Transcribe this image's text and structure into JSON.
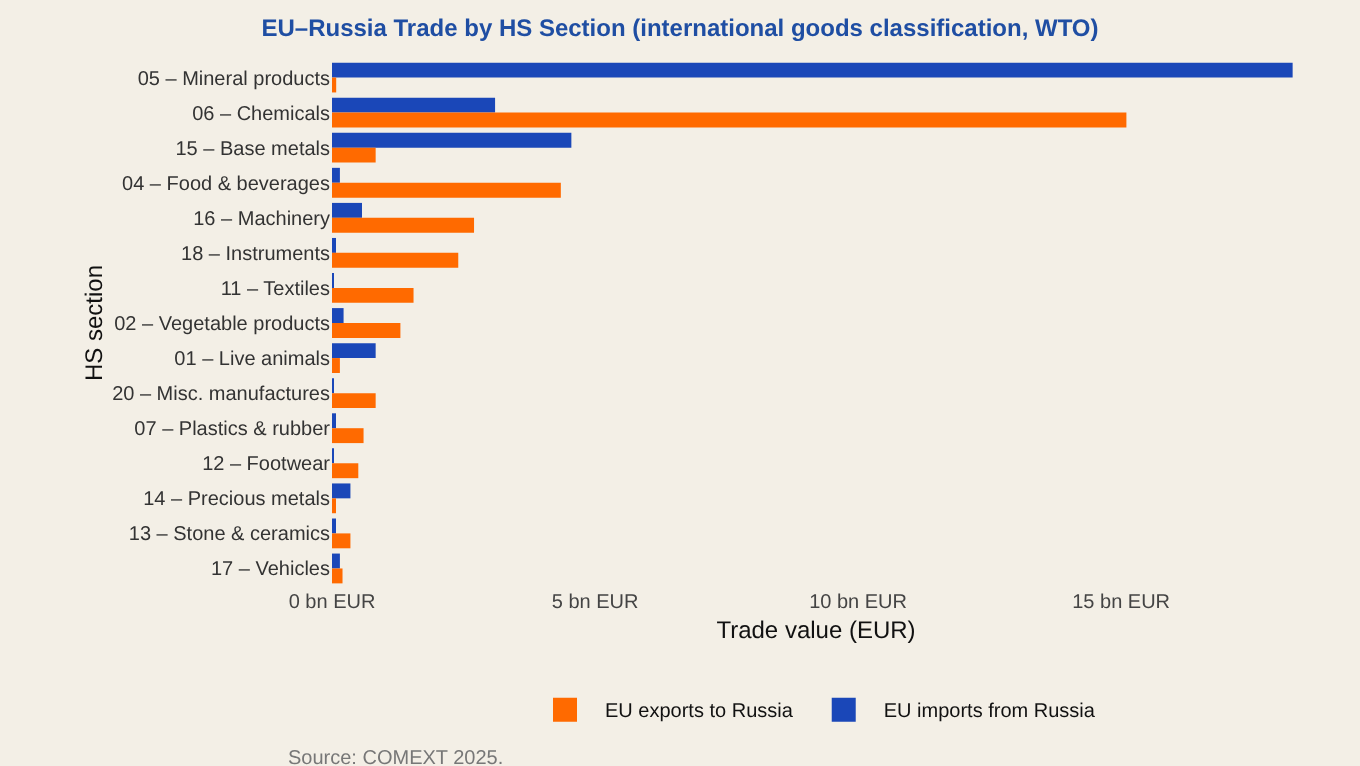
{
  "chart_data": {
    "type": "bar",
    "orientation": "horizontal",
    "title": "EU–Russia Trade by HS Section (international goods classification, WTO)",
    "xlabel": "Trade value (EUR)",
    "ylabel": "HS section",
    "categories": [
      "05 – Mineral products",
      "06 – Chemicals",
      "15 – Base metals",
      "04 – Food & beverages",
      "16 – Machinery",
      "18 – Instruments",
      "11 – Textiles",
      "02 – Vegetable products",
      "01 – Live animals",
      "20 – Misc. manufactures",
      "07 – Plastics & rubber",
      "12 – Footwear",
      "14 – Precious metals",
      "13 – Stone & ceramics",
      "17 – Vehicles"
    ],
    "series": [
      {
        "name": "EU exports to Russia",
        "color": "#ff6a00",
        "values": [
          0.08,
          15.1,
          0.83,
          4.35,
          2.7,
          2.4,
          1.55,
          1.3,
          0.15,
          0.83,
          0.6,
          0.5,
          0.04,
          0.35,
          0.2
        ]
      },
      {
        "name": "EU imports from Russia",
        "color": "#1a47b8",
        "values": [
          18.26,
          3.1,
          4.55,
          0.15,
          0.57,
          0.04,
          0.03,
          0.22,
          0.83,
          0.03,
          0.06,
          0.02,
          0.35,
          0.04,
          0.15
        ]
      }
    ],
    "xlim": [
      0,
      18.4
    ],
    "xticks": [
      {
        "value": 0,
        "label": "0 bn EUR"
      },
      {
        "value": 5,
        "label": "5 bn EUR"
      },
      {
        "value": 10,
        "label": "10 bn EUR"
      },
      {
        "value": 15,
        "label": "15 bn EUR"
      }
    ],
    "grid": false,
    "legend": "bottom",
    "annotations": [
      "Source: COMEXT 2025."
    ]
  }
}
